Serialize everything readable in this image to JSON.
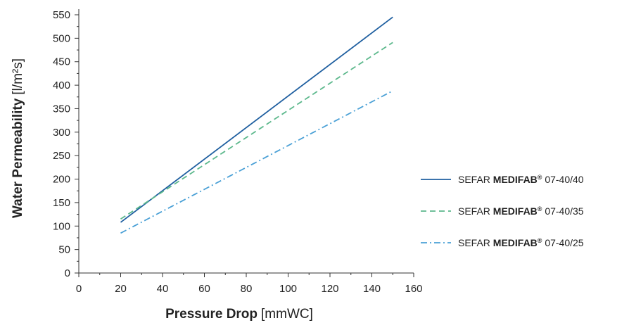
{
  "chart_data": {
    "type": "line",
    "xlabel_bold": "Pressure Drop",
    "xlabel_unit": "[mmWC]",
    "ylabel_bold": "Water Permeability",
    "ylabel_unit": "[l/m²s]",
    "xlim": [
      0,
      160
    ],
    "ylim": [
      0,
      550
    ],
    "xticks": [
      "0",
      "20",
      "40",
      "60",
      "80",
      "100",
      "120",
      "140",
      "160"
    ],
    "yticks": [
      "0",
      "50",
      "100",
      "150",
      "200",
      "250",
      "300",
      "350",
      "400",
      "450",
      "500",
      "550"
    ],
    "grid": false,
    "legend_position": "right",
    "series": [
      {
        "name_prefix": "SEFAR ",
        "name_brand": "MEDIFAB",
        "name_mark": "®",
        "name_suffix": " 07-40/40",
        "color": "#1f5fa0",
        "dash": "solid",
        "x": [
          20,
          150
        ],
        "y": [
          108,
          545
        ]
      },
      {
        "name_prefix": "SEFAR ",
        "name_brand": "MEDIFAB",
        "name_mark": "®",
        "name_suffix": " 07-40/35",
        "color": "#5cb88c",
        "dash": "dashed",
        "x": [
          20,
          150
        ],
        "y": [
          115,
          491
        ]
      },
      {
        "name_prefix": "SEFAR ",
        "name_brand": "MEDIFAB",
        "name_mark": "®",
        "name_suffix": " 07-40/25",
        "color": "#4aa0d6",
        "dash": "dashdot",
        "x": [
          20,
          150
        ],
        "y": [
          85,
          388
        ]
      }
    ]
  }
}
